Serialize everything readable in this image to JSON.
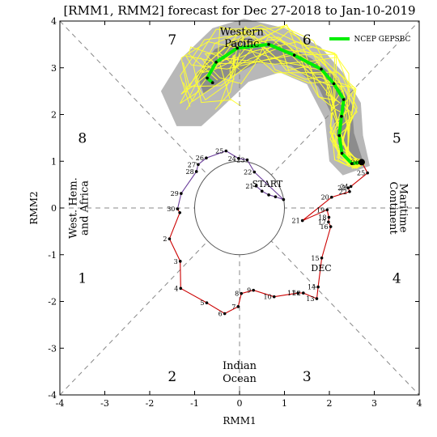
{
  "chart_data": {
    "type": "line",
    "title": "[RMM1, RMM2] forecast for Dec 27-2018 to Jan-10-2019",
    "xlabel": "RMM1",
    "ylabel": "RMM2",
    "xlim": [
      -4,
      4
    ],
    "ylim": [
      -4,
      4
    ],
    "xticks": [
      "-4",
      "-3",
      "-2",
      "-1",
      "0",
      "1",
      "2",
      "3",
      "4"
    ],
    "yticks": [
      "-4",
      "-3",
      "-2",
      "-1",
      "0",
      "1",
      "2",
      "3",
      "4"
    ],
    "phase_labels": [
      {
        "id": "1",
        "x": -3.5,
        "y": -1.5
      },
      {
        "id": "2",
        "x": -1.5,
        "y": -3.6
      },
      {
        "id": "3",
        "x": 1.5,
        "y": -3.6
      },
      {
        "id": "4",
        "x": 3.5,
        "y": -1.5
      },
      {
        "id": "5",
        "x": 3.5,
        "y": 1.5
      },
      {
        "id": "6",
        "x": 1.5,
        "y": 3.6
      },
      {
        "id": "7",
        "x": -1.5,
        "y": 3.6
      },
      {
        "id": "8",
        "x": -3.5,
        "y": 1.5
      }
    ],
    "regions": [
      {
        "name": "western-pacific",
        "lines": [
          "Western",
          "Pacific"
        ]
      },
      {
        "name": "indian-ocean",
        "lines": [
          "Indian",
          "Ocean"
        ]
      },
      {
        "name": "west-hem-africa",
        "lines": [
          "West. Hem.",
          "and Africa"
        ]
      },
      {
        "name": "maritime-continent",
        "lines": [
          "Maritime",
          "Continent"
        ]
      }
    ],
    "legend": {
      "label": "NCEP GEPSBC",
      "color": "#00ee00",
      "position": "top-right"
    },
    "annotations": {
      "start": "START",
      "dec": "DEC"
    },
    "observed_nov": {
      "color": "#6a3d9a",
      "points": [
        {
          "day": "21",
          "x": 0.37,
          "y": 0.47
        },
        {
          "day": "",
          "x": 0.5,
          "y": 0.36
        },
        {
          "day": "",
          "x": 0.65,
          "y": 0.28
        },
        {
          "day": "",
          "x": 0.8,
          "y": 0.24
        },
        {
          "day": "",
          "x": 0.98,
          "y": 0.18
        },
        {
          "day": "22",
          "x": 0.33,
          "y": 0.77
        },
        {
          "day": "23",
          "x": 0.17,
          "y": 1.03
        },
        {
          "day": "24",
          "x": -0.02,
          "y": 1.06
        },
        {
          "day": "25",
          "x": -0.3,
          "y": 1.22
        },
        {
          "day": "26",
          "x": -0.74,
          "y": 1.07
        },
        {
          "day": "27",
          "x": -0.92,
          "y": 0.93
        },
        {
          "day": "28",
          "x": -0.96,
          "y": 0.78
        },
        {
          "day": "29",
          "x": -1.3,
          "y": 0.31
        },
        {
          "day": "30",
          "x": -1.38,
          "y": -0.02
        }
      ]
    },
    "observed_dec": {
      "color": "#cc0000",
      "points": [
        {
          "day": "",
          "x": -1.38,
          "y": -0.02
        },
        {
          "day": "",
          "x": -1.33,
          "y": -0.1
        },
        {
          "day": "2",
          "x": -1.56,
          "y": -0.66
        },
        {
          "day": "3",
          "x": -1.32,
          "y": -1.14
        },
        {
          "day": "4",
          "x": -1.31,
          "y": -1.72
        },
        {
          "day": "5",
          "x": -0.73,
          "y": -2.03
        },
        {
          "day": "6",
          "x": -0.33,
          "y": -2.26
        },
        {
          "day": "7",
          "x": -0.03,
          "y": -2.11
        },
        {
          "day": "8",
          "x": 0.04,
          "y": -1.83
        },
        {
          "day": "9",
          "x": 0.31,
          "y": -1.76
        },
        {
          "day": "10",
          "x": 0.77,
          "y": -1.9
        },
        {
          "day": "11",
          "x": 1.3,
          "y": -1.82
        },
        {
          "day": "12",
          "x": 1.42,
          "y": -1.82
        },
        {
          "day": "13",
          "x": 1.72,
          "y": -1.94
        },
        {
          "day": "14",
          "x": 1.75,
          "y": -1.69
        },
        {
          "day": "15",
          "x": 1.83,
          "y": -1.07
        },
        {
          "day": "16",
          "x": 2.03,
          "y": -0.4
        },
        {
          "day": "17",
          "x": 1.98,
          "y": -0.3
        },
        {
          "day": "18",
          "x": 1.99,
          "y": -0.2
        },
        {
          "day": "19",
          "x": 1.95,
          "y": -0.04
        },
        {
          "day": "21",
          "x": 1.4,
          "y": -0.27
        },
        {
          "day": "20",
          "x": 2.05,
          "y": 0.23
        },
        {
          "day": "22",
          "x": 2.45,
          "y": 0.35
        },
        {
          "day": "23",
          "x": 2.42,
          "y": 0.43
        },
        {
          "day": "24",
          "x": 2.48,
          "y": 0.46
        },
        {
          "day": "25",
          "x": 2.85,
          "y": 0.75
        },
        {
          "day": "26",
          "x": 2.72,
          "y": 0.98
        }
      ]
    },
    "ensemble_mean": {
      "name": "NCEP GEPSBC",
      "color": "#00ee00",
      "points": [
        {
          "x": 2.72,
          "y": 0.98
        },
        {
          "x": 2.5,
          "y": 0.95
        },
        {
          "x": 2.28,
          "y": 1.17
        },
        {
          "x": 2.22,
          "y": 1.55
        },
        {
          "x": 2.27,
          "y": 1.96
        },
        {
          "x": 2.32,
          "y": 2.32
        },
        {
          "x": 2.1,
          "y": 2.66
        },
        {
          "x": 1.82,
          "y": 2.97
        },
        {
          "x": 1.22,
          "y": 3.27
        },
        {
          "x": 0.65,
          "y": 3.5
        },
        {
          "x": -0.05,
          "y": 3.42
        },
        {
          "x": -0.52,
          "y": 3.12
        },
        {
          "x": -0.72,
          "y": 2.78
        },
        {
          "x": -0.6,
          "y": 2.68
        }
      ]
    },
    "spread_outer": [
      {
        "x": 2.9,
        "y": 0.9
      },
      {
        "x": 2.75,
        "y": 1.55
      },
      {
        "x": 2.7,
        "y": 2.25
      },
      {
        "x": 2.3,
        "y": 2.9
      },
      {
        "x": 1.8,
        "y": 3.45
      },
      {
        "x": 1.0,
        "y": 3.85
      },
      {
        "x": 0.1,
        "y": 4.05
      },
      {
        "x": -0.6,
        "y": 3.85
      },
      {
        "x": -1.3,
        "y": 3.2
      },
      {
        "x": -1.75,
        "y": 2.5
      },
      {
        "x": -1.4,
        "y": 1.75
      },
      {
        "x": -0.85,
        "y": 1.75
      },
      {
        "x": -0.45,
        "y": 2.1
      },
      {
        "x": 0.2,
        "y": 2.7
      },
      {
        "x": 0.9,
        "y": 2.9
      },
      {
        "x": 1.5,
        "y": 2.65
      },
      {
        "x": 1.9,
        "y": 1.9
      },
      {
        "x": 2.0,
        "y": 1.0
      },
      {
        "x": 2.3,
        "y": 0.7
      }
    ],
    "spread_inner": [
      {
        "x": 2.75,
        "y": 1.0
      },
      {
        "x": 2.55,
        "y": 1.6
      },
      {
        "x": 2.5,
        "y": 2.2
      },
      {
        "x": 2.15,
        "y": 2.8
      },
      {
        "x": 1.6,
        "y": 3.2
      },
      {
        "x": 0.9,
        "y": 3.55
      },
      {
        "x": 0.05,
        "y": 3.65
      },
      {
        "x": -0.55,
        "y": 3.4
      },
      {
        "x": -0.95,
        "y": 2.85
      },
      {
        "x": -0.8,
        "y": 2.45
      },
      {
        "x": -0.35,
        "y": 2.75
      },
      {
        "x": 0.4,
        "y": 3.1
      },
      {
        "x": 1.15,
        "y": 3.05
      },
      {
        "x": 1.75,
        "y": 2.6
      },
      {
        "x": 2.1,
        "y": 1.9
      },
      {
        "x": 2.25,
        "y": 1.1
      }
    ]
  }
}
